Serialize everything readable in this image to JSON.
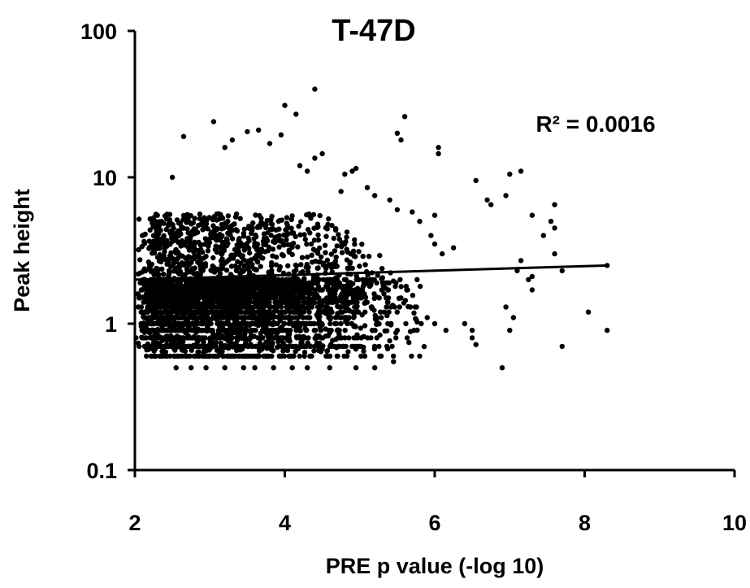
{
  "chart_data": {
    "type": "scatter",
    "title": "T-47D",
    "xlabel": "PRE p value (-log 10)",
    "ylabel": "Peak height",
    "xlim": [
      2,
      10
    ],
    "ylim": [
      0.1,
      100
    ],
    "y_scale": "log",
    "x_ticks": [
      "2",
      "4",
      "6",
      "8",
      "10"
    ],
    "y_ticks": [
      "0.1",
      "1",
      "10",
      "100"
    ],
    "grid": false,
    "annotation": "R² = 0.0016",
    "trendline": {
      "x": [
        2.0,
        8.33
      ],
      "y": [
        2.0,
        2.5
      ]
    },
    "series": [
      {
        "values": [
          [
            4.4,
            40
          ],
          [
            4.0,
            31
          ],
          [
            4.15,
            27
          ],
          [
            3.05,
            24
          ],
          [
            3.5,
            20.5
          ],
          [
            3.65,
            21
          ],
          [
            3.95,
            19.5
          ],
          [
            2.65,
            19
          ],
          [
            3.3,
            18
          ],
          [
            3.8,
            17
          ],
          [
            4.5,
            14.5
          ],
          [
            4.4,
            13.5
          ],
          [
            3.2,
            16
          ],
          [
            5.6,
            26
          ],
          [
            5.5,
            20
          ],
          [
            5.55,
            18
          ],
          [
            6.05,
            16
          ],
          [
            6.05,
            14.5
          ],
          [
            4.95,
            11.5
          ],
          [
            4.9,
            11
          ],
          [
            7.0,
            10.5
          ],
          [
            7.15,
            11
          ],
          [
            6.55,
            9.5
          ],
          [
            6.95,
            7.5
          ],
          [
            6.7,
            7
          ],
          [
            6.75,
            6.5
          ],
          [
            7.3,
            5.5
          ],
          [
            7.6,
            6.5
          ],
          [
            7.55,
            5
          ],
          [
            7.45,
            4
          ],
          [
            7.6,
            4.5
          ],
          [
            7.6,
            3
          ],
          [
            7.15,
            2.7
          ],
          [
            7.1,
            2.3
          ],
          [
            7.3,
            2.1
          ],
          [
            7.3,
            1.7
          ],
          [
            7.25,
            2.0
          ],
          [
            7.7,
            2.3
          ],
          [
            6.95,
            1.3
          ],
          [
            7.05,
            1.1
          ],
          [
            7.0,
            0.9
          ],
          [
            8.05,
            1.2
          ],
          [
            8.3,
            0.9
          ],
          [
            7.7,
            0.7
          ],
          [
            6.9,
            0.5
          ],
          [
            6.5,
            0.9
          ],
          [
            6.5,
            0.8
          ],
          [
            6.4,
            1.0
          ],
          [
            6.55,
            0.72
          ],
          [
            6.15,
            0.9
          ],
          [
            6.0,
            1.0
          ],
          [
            5.9,
            1.1
          ],
          [
            5.8,
            0.6
          ],
          [
            5.45,
            0.55
          ],
          [
            5.2,
            0.5
          ],
          [
            4.95,
            0.5
          ],
          [
            4.6,
            0.5
          ],
          [
            4.3,
            0.5
          ],
          [
            4.1,
            0.5
          ],
          [
            3.85,
            0.5
          ],
          [
            3.6,
            0.5
          ],
          [
            3.45,
            0.5
          ],
          [
            3.2,
            0.5
          ],
          [
            2.95,
            0.5
          ],
          [
            2.75,
            0.5
          ],
          [
            2.55,
            0.5
          ],
          [
            6.0,
            3.5
          ],
          [
            6.1,
            3.0
          ],
          [
            6.25,
            3.3
          ],
          [
            5.95,
            4.0
          ],
          [
            5.7,
            5.8
          ],
          [
            5.8,
            5.0
          ],
          [
            6.0,
            5.5
          ],
          [
            5.5,
            6.0
          ],
          [
            5.4,
            7.0
          ],
          [
            5.2,
            7.5
          ],
          [
            5.1,
            8.5
          ],
          [
            4.8,
            10.5
          ],
          [
            4.75,
            8.0
          ],
          [
            4.3,
            11.0
          ],
          [
            4.2,
            12.0
          ],
          [
            2.5,
            10.0
          ],
          [
            2.3,
            5.5
          ],
          [
            2.1,
            4.0
          ],
          [
            2.05,
            3.2
          ],
          [
            8.3,
            2.5
          ]
        ]
      }
    ]
  }
}
